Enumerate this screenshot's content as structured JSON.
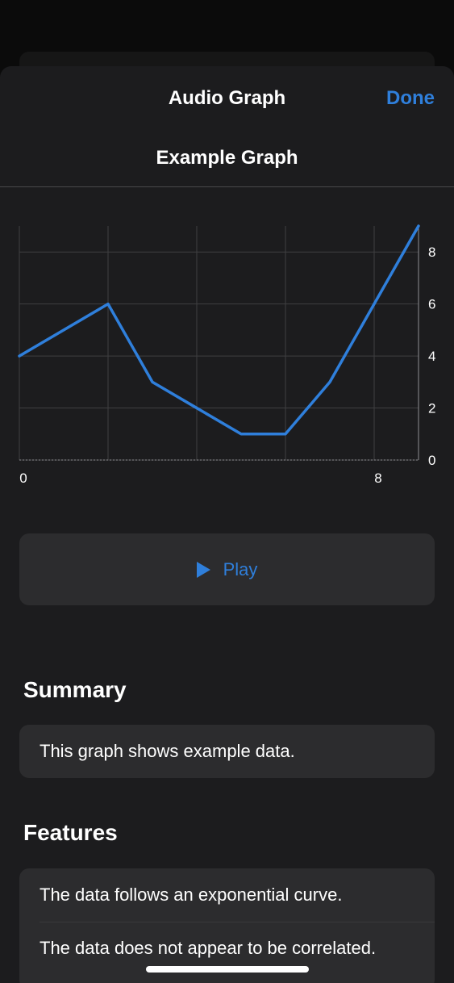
{
  "nav": {
    "title": "Audio Graph",
    "done_label": "Done"
  },
  "graph_title": "Example Graph",
  "chart_data": {
    "type": "line",
    "title": "Example Graph",
    "x": [
      0,
      2,
      3,
      4,
      5,
      6,
      7,
      8,
      9
    ],
    "series": [
      {
        "values": [
          4,
          6,
          3,
          2,
          1,
          1,
          3,
          6,
          9
        ]
      }
    ],
    "xlim": [
      0,
      9
    ],
    "ylim": [
      0,
      9
    ],
    "x_ticks": [
      0,
      8
    ],
    "y_ticks": [
      0,
      2,
      4,
      6,
      8
    ],
    "x_gridlines": [
      0,
      2,
      4,
      6,
      8
    ],
    "y_gridlines": [
      0,
      2,
      4,
      6,
      8
    ],
    "y_axis_position": "right",
    "grid": true,
    "line_color": "#2f7fdb"
  },
  "play_button": {
    "label": "Play",
    "icon": "play-icon",
    "color": "#2f7fdb"
  },
  "summary": {
    "title": "Summary",
    "text": "This graph shows example data."
  },
  "features": {
    "title": "Features",
    "items": [
      "The data follows an exponential curve.",
      "The data does not appear to be correlated."
    ]
  },
  "colors": {
    "accent": "#2f7fdb",
    "sheet_background": "#1c1c1e",
    "card_background": "#2c2c2e"
  }
}
